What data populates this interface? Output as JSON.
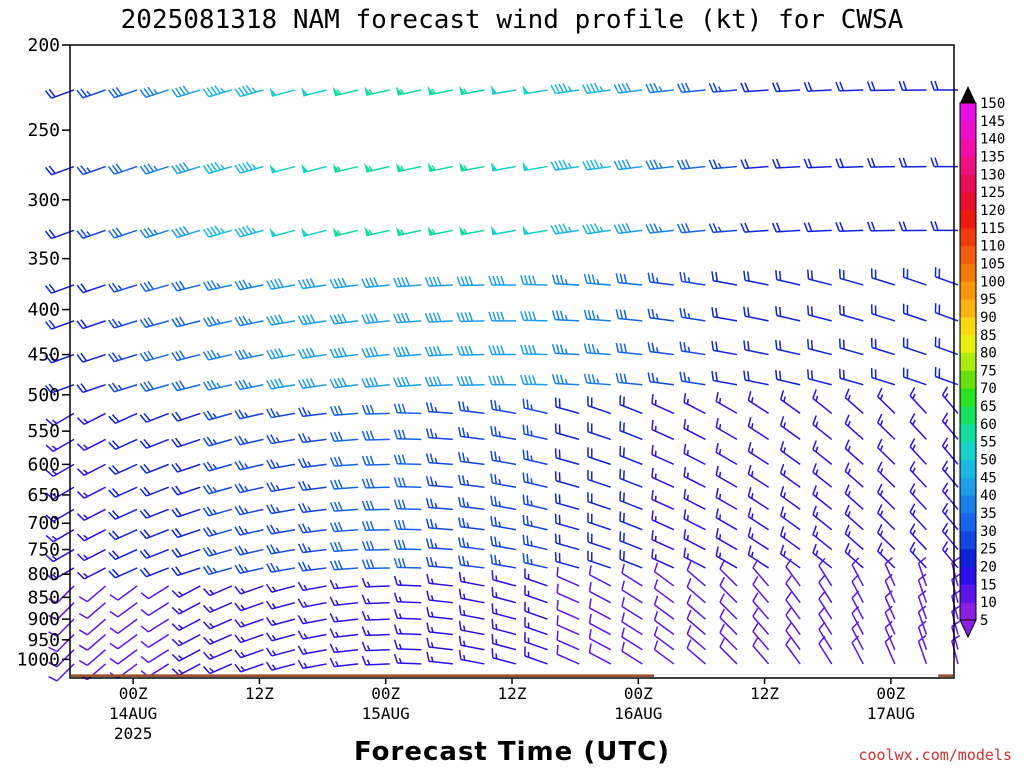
{
  "chart_data": {
    "type": "wind-barb-time-height",
    "title": "2025081318 NAM forecast wind profile (kt) for CWSA",
    "xlabel": "Forecast Time (UTC)",
    "ylabel": "",
    "y_ticks": [
      "200",
      "250",
      "300",
      "350",
      "400",
      "450",
      "500",
      "550",
      "600",
      "650",
      "700",
      "750",
      "800",
      "850",
      "900",
      "950",
      "1000"
    ],
    "y_levels": [
      200,
      250,
      300,
      350,
      400,
      450,
      500,
      550,
      600,
      650,
      700,
      750,
      800,
      850,
      900,
      950,
      1000
    ],
    "ylim": [
      200,
      1050
    ],
    "y_scale": "log-pressure",
    "x_ticks": [
      {
        "label": "00Z",
        "date": "14AUG",
        "year": "2025",
        "hour": 6
      },
      {
        "label": "12Z",
        "date": "",
        "year": "",
        "hour": 18
      },
      {
        "label": "00Z",
        "date": "15AUG",
        "year": "",
        "hour": 30
      },
      {
        "label": "12Z",
        "date": "",
        "year": "",
        "hour": 42
      },
      {
        "label": "00Z",
        "date": "16AUG",
        "year": "",
        "hour": 54
      },
      {
        "label": "12Z",
        "date": "",
        "year": "",
        "hour": 66
      },
      {
        "label": "00Z",
        "date": "17AUG",
        "year": "",
        "hour": 78
      }
    ],
    "x_range_hours": [
      0,
      84
    ],
    "time_step_hours": 3,
    "barb_levels": [
      225,
      275,
      325,
      375,
      412,
      450,
      487,
      525,
      562,
      600,
      637,
      675,
      712,
      750,
      787,
      825,
      862,
      900,
      937,
      975,
      1012
    ],
    "colorbar": {
      "values": [
        5,
        10,
        15,
        20,
        25,
        30,
        35,
        40,
        45,
        50,
        55,
        60,
        65,
        70,
        75,
        80,
        85,
        90,
        95,
        100,
        105,
        110,
        115,
        120,
        125,
        130,
        135,
        140,
        145,
        150
      ],
      "colors": [
        "#8a1fe0",
        "#5a16e8",
        "#2a10e8",
        "#1022d8",
        "#1446e0",
        "#1664e8",
        "#1880e8",
        "#1e9ee8",
        "#1ab8e0",
        "#18d0c8",
        "#10dca0",
        "#14e060",
        "#28e020",
        "#68e010",
        "#a8ec10",
        "#e8f010",
        "#f8d810",
        "#f8b410",
        "#f8960c",
        "#f47a0c",
        "#f05c0c",
        "#ec3c0c",
        "#ec1c10",
        "#e81030",
        "#e8105a",
        "#ec1080",
        "#ec10a8",
        "#ec10cc",
        "#e810e8",
        "#e020f0"
      ]
    },
    "ground": "brown fill below about 1040 hPa",
    "credit": "coolwx.com/models"
  }
}
